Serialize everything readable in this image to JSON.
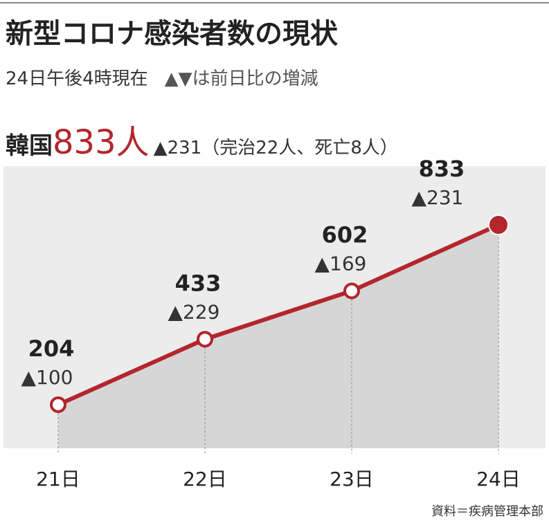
{
  "chart_data": {
    "type": "line",
    "title": "新型コロナ感染者数の現状",
    "subtitle": "24日午後4時現在",
    "legend_note": "▲▼は前日比の増減",
    "headline": {
      "country": "韓国",
      "total": "833人",
      "detail": "▲231（完治22人、死亡8人）"
    },
    "categories": [
      "21日",
      "22日",
      "23日",
      "24日"
    ],
    "series": [
      {
        "name": "韓国",
        "color": "#b3262c",
        "values": [
          204,
          433,
          602,
          833
        ]
      }
    ],
    "changes": [
      100,
      229,
      169,
      231
    ],
    "change_labels": [
      "▲100",
      "▲229",
      "▲169",
      "▲231"
    ],
    "source": "資料＝疾病管理本部"
  }
}
